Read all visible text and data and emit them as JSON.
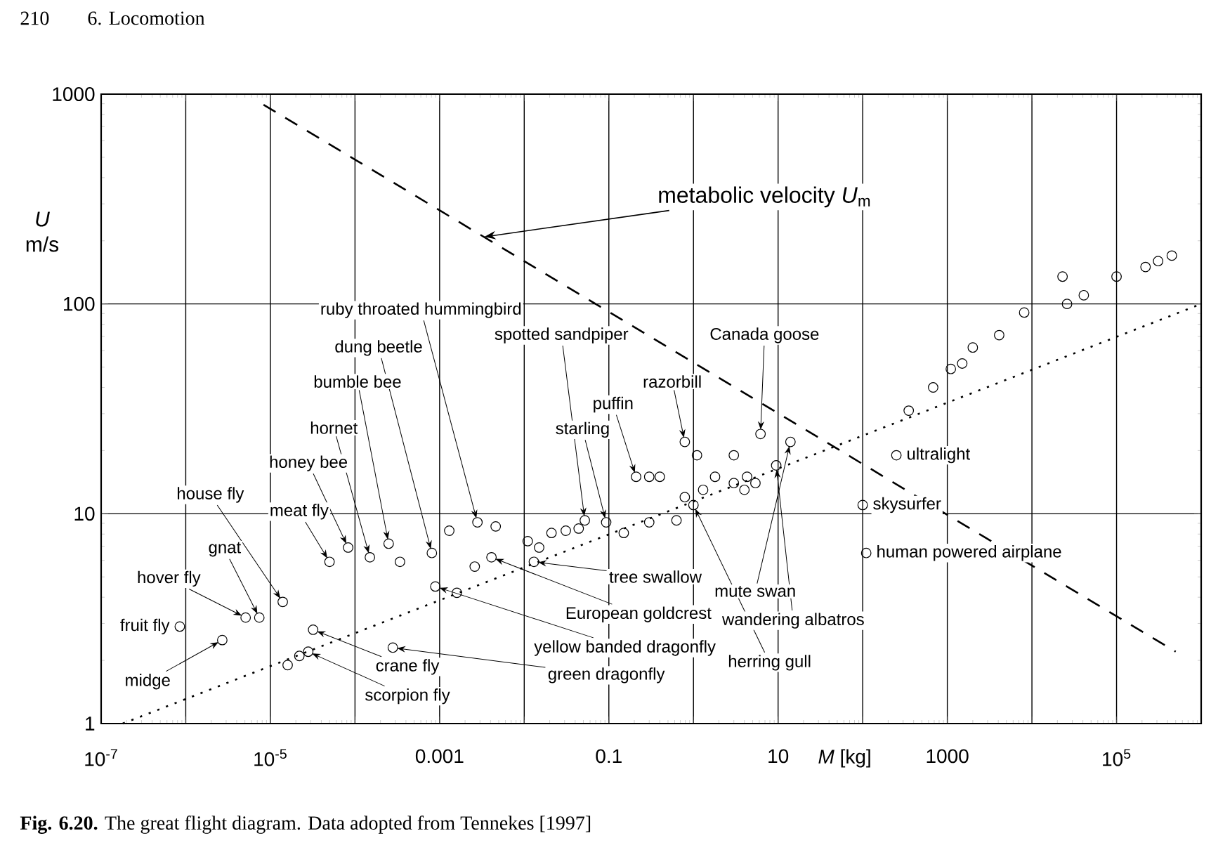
{
  "chart_data": {
    "type": "scatter",
    "log": "xy",
    "grid": true,
    "xlabel": "*M* [kg]",
    "ylabel": "*U* m/s",
    "xlim": [
      1e-07,
      1000000.0
    ],
    "ylim": [
      1,
      1000
    ],
    "xticks": [
      {
        "value": 1e-07,
        "label": "10$^{-7}$"
      },
      {
        "value": 1e-06,
        "label": null
      },
      {
        "value": 1e-05,
        "label": "10$^{-5}$"
      },
      {
        "value": 0.0001,
        "label": null
      },
      0.001,
      {
        "value": 0.01,
        "label": null
      },
      0.1,
      {
        "value": 1,
        "label": null
      },
      10,
      {
        "value": 100,
        "label": null
      },
      1000,
      {
        "value": 10000,
        "label": null
      },
      {
        "value": 100000,
        "label": "10$^{5}$"
      },
      {
        "value": 1000000,
        "label": null
      }
    ],
    "yticks": [
      1,
      10,
      100,
      1000
    ],
    "series": [
      {
        "type": "scatter",
        "marker": "circle",
        "color": "#000000",
        "x": [
          8.5e-07,
          2.7e-06,
          5.1e-06,
          7.4e-06,
          1.4e-05,
          1.6e-05,
          2.2e-05,
          2.8e-05,
          3.2e-05,
          5e-05,
          8.3e-05,
          0.00015,
          0.00025,
          0.00034,
          0.00028,
          0.00081,
          0.0013,
          0.00089,
          0.0016,
          0.0028,
          0.0046,
          0.0026,
          0.0041,
          0.011,
          0.013,
          0.015,
          0.021,
          0.031,
          0.044,
          0.052,
          0.093,
          0.15,
          0.21,
          0.3,
          0.4,
          0.3,
          0.63,
          0.79,
          1.1,
          0.79,
          1.3,
          1.0,
          1.8,
          3.0,
          3.0,
          4.3,
          5.4,
          4.0,
          6.2,
          9.5,
          14,
          100,
          110,
          250,
          350,
          680,
          1100,
          1500,
          2000,
          4100,
          8100,
          23000,
          26000,
          41000,
          100000,
          220000,
          310000,
          450000
        ],
        "values": [
          2.9,
          2.5,
          3.2,
          3.2,
          3.8,
          1.9,
          2.1,
          2.2,
          2.8,
          5.9,
          6.9,
          6.2,
          7.2,
          5.9,
          2.3,
          6.5,
          8.3,
          4.5,
          4.2,
          9.1,
          8.7,
          5.6,
          6.2,
          7.4,
          5.9,
          6.9,
          8.1,
          8.3,
          8.5,
          9.3,
          9.1,
          8.1,
          15,
          15,
          15,
          9.1,
          9.3,
          22,
          19,
          12,
          13,
          11,
          15,
          19,
          14,
          15,
          14,
          13,
          24,
          17,
          22,
          11,
          6.5,
          19,
          31,
          40,
          49,
          52,
          62,
          71,
          91,
          135,
          100,
          110,
          135,
          150,
          160,
          170
        ]
      },
      {
        "type": "line",
        "name": "metabolic velocity *U*$_{m}$",
        "line_style": "dashed",
        "color": "#000000",
        "x": [
          8.3e-06,
          500000
        ],
        "values": [
          890,
          2.2
        ]
      },
      {
        "type": "line",
        "line_style": "dotted",
        "color": "#000000",
        "x": [
          1.8e-07,
          1000000
        ],
        "values": [
          1.0,
          100
        ]
      }
    ],
    "annotations": [
      "210",
      "6. Locomotion",
      {
        "text": "fruit fly",
        "x": 8.5e-07,
        "y": 2.9
      },
      {
        "text": "midge",
        "x": 2.7e-06,
        "y": 2.5
      },
      {
        "text": "hover fly",
        "x": 5.1e-06,
        "y": 3.2
      },
      {
        "text": "gnat",
        "x": 7.4e-06,
        "y": 3.2
      },
      {
        "text": "house fly",
        "x": 1.4e-05,
        "y": 3.8
      },
      {
        "text": "meat fly",
        "x": 5e-05,
        "y": 5.9
      },
      {
        "text": "honey bee",
        "x": 8.3e-05,
        "y": 6.9
      },
      {
        "text": "hornet",
        "x": 0.00015,
        "y": 6.2
      },
      {
        "text": "bumble bee",
        "x": 0.00025,
        "y": 7.2
      },
      {
        "text": "dung beetle",
        "x": 0.00081,
        "y": 6.5
      },
      {
        "text": "ruby throated hummingbird",
        "x": 0.0028,
        "y": 9.1
      },
      {
        "text": "spotted sandpiper",
        "x": 0.052,
        "y": 9.3
      },
      {
        "text": "puffin",
        "x": 0.21,
        "y": 15
      },
      {
        "text": "starling",
        "x": 0.093,
        "y": 9.1
      },
      {
        "text": "Canada goose",
        "x": 6.2,
        "y": 24
      },
      {
        "text": "razorbill",
        "x": 0.79,
        "y": 22
      },
      {
        "text": "tree swallow",
        "x": 0.013,
        "y": 5.9
      },
      {
        "text": "European goldcrest",
        "x": 0.0041,
        "y": 6.2
      },
      {
        "text": "yellow banded dragonfly",
        "x": 0.00089,
        "y": 4.5
      },
      {
        "text": "green dragonfly",
        "x": 0.00028,
        "y": 2.3
      },
      {
        "text": "crane fly",
        "x": 3.2e-05,
        "y": 2.8
      },
      {
        "text": "scorpion fly",
        "x": 2.8e-05,
        "y": 2.2
      },
      {
        "text": "herring gull",
        "x": 1.0,
        "y": 11
      },
      {
        "text": "mute swan",
        "x": 14,
        "y": 22
      },
      {
        "text": "wandering albatros",
        "x": 9.5,
        "y": 17
      },
      {
        "text": "ultralight",
        "x": 250,
        "y": 19
      },
      {
        "text": "skysurfer",
        "x": 100,
        "y": 11
      },
      {
        "text": "human powered airplane",
        "x": 110,
        "y": 6.5
      },
      "**Fig. 6.20.** The great flight diagram. Data adopted from Tennekes [1997]"
    ]
  }
}
